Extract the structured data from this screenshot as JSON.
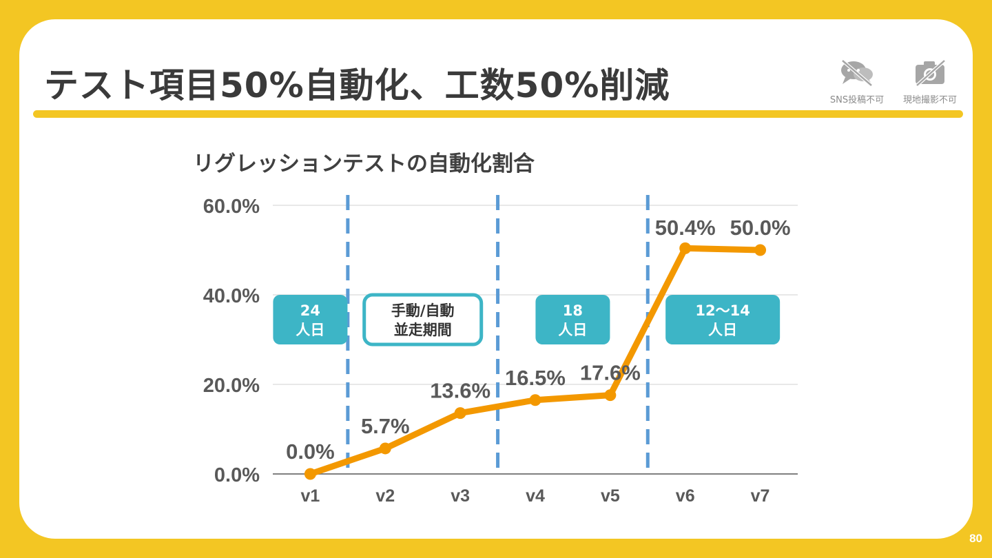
{
  "slide": {
    "title": "テスト項目50%自動化、工数50%削減",
    "page_number": "80",
    "notices": [
      {
        "label": "SNS投稿不可",
        "icon": "no-sns-icon"
      },
      {
        "label": "現地撮影不可",
        "icon": "no-camera-icon"
      }
    ]
  },
  "colors": {
    "background": "#F3C623",
    "line": "#F39800",
    "divider": "#5B9BD5",
    "badge": "#3DB5C6",
    "text": "#595959"
  },
  "chart_data": {
    "type": "line",
    "title": "リグレッションテストの自動化割合",
    "categories": [
      "v1",
      "v2",
      "v3",
      "v4",
      "v5",
      "v6",
      "v7"
    ],
    "series": [
      {
        "values": [
          0.0,
          5.7,
          13.6,
          16.5,
          17.6,
          50.4,
          50.0
        ]
      }
    ],
    "data_labels": [
      "0.0%",
      "5.7%",
      "13.6%",
      "16.5%",
      "17.6%",
      "50.4%",
      "50.0%"
    ],
    "y_ticks": [
      "0.0%",
      "20.0%",
      "40.0%",
      "60.0%"
    ],
    "ylim": [
      0,
      60
    ],
    "grid": true,
    "phase_dividers": [
      "v1-v2",
      "v3-v4",
      "v5-v6"
    ],
    "phases": [
      {
        "line1": "24",
        "line2": "人日",
        "style": "filled"
      },
      {
        "line1": "手動/自動",
        "line2": "並走期間",
        "style": "outline"
      },
      {
        "line1": "18",
        "line2": "人日",
        "style": "filled"
      },
      {
        "line1": "12〜14",
        "line2": "人日",
        "style": "filled"
      }
    ]
  }
}
